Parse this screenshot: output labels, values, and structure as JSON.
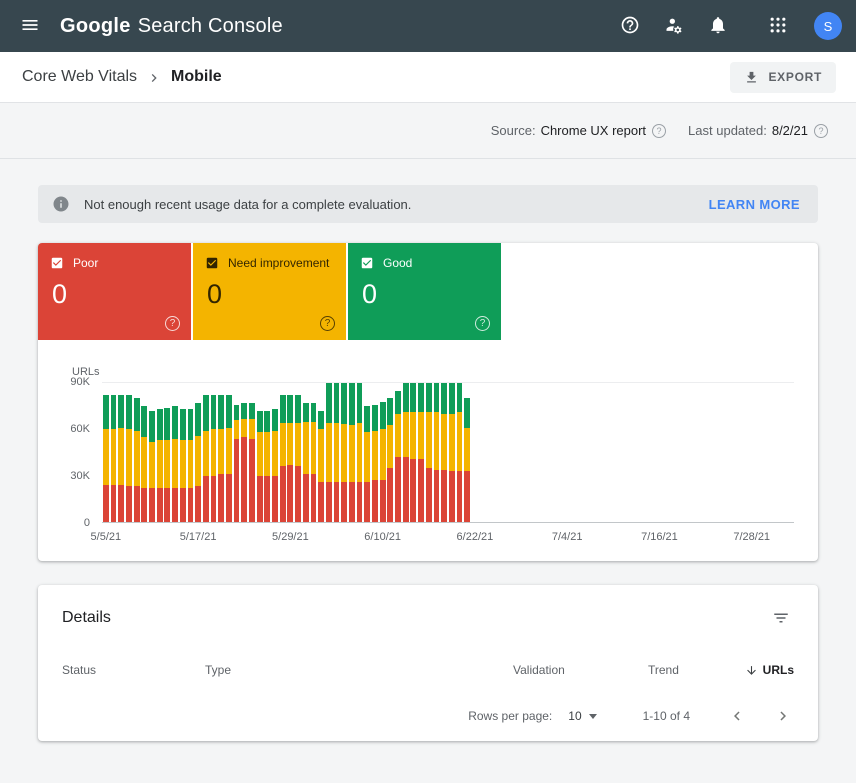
{
  "topbar": {
    "logo_google": "Google",
    "logo_product": "Search Console",
    "avatar_initial": "S",
    "colors": {
      "bar_bg": "#37474F",
      "avatar_bg": "#4285F4"
    }
  },
  "breadcrumb": {
    "parent": "Core Web Vitals",
    "current": "Mobile",
    "export_label": "EXPORT"
  },
  "meta_bar": {
    "source_label": "Source:",
    "source_value": "Chrome UX report",
    "updated_label": "Last updated:",
    "updated_value": "8/2/21"
  },
  "banner": {
    "message": "Not enough recent usage data for a complete evaluation.",
    "action_label": "LEARN MORE",
    "action_color": "#4285F4"
  },
  "status_cards": [
    {
      "label": "Poor",
      "value": "0",
      "color": "#DB4437"
    },
    {
      "label": "Need improvement",
      "value": "0",
      "color": "#F4B400"
    },
    {
      "label": "Good",
      "value": "0",
      "color": "#0F9D58"
    }
  ],
  "icons": {
    "menu": "hamburger",
    "help": "question-mark-circle",
    "user_settings": "person-gear",
    "notifications": "bell",
    "apps": "grid-3x3",
    "export": "download-arrow",
    "info": "info-circle-filled",
    "filter": "filter-lines",
    "sort": "arrow-down",
    "prev": "chevron-left",
    "next": "chevron-right"
  },
  "chart_data": {
    "type": "stacked-bar",
    "ylabel": "URLs",
    "ymax": 90000,
    "yticks": [
      "90K",
      "60K",
      "30K",
      "0"
    ],
    "total_days": 90,
    "x_ticks": [
      {
        "day": 0,
        "label": "5/5/21"
      },
      {
        "day": 12,
        "label": "5/17/21"
      },
      {
        "day": 24,
        "label": "5/29/21"
      },
      {
        "day": 36,
        "label": "6/10/21"
      },
      {
        "day": 48,
        "label": "6/22/21"
      },
      {
        "day": 60,
        "label": "7/4/21"
      },
      {
        "day": 72,
        "label": "7/16/21"
      },
      {
        "day": 84,
        "label": "7/28/21"
      }
    ],
    "series_order": [
      "poor",
      "need_improvement",
      "good"
    ],
    "series_colors": {
      "poor": "#DB4437",
      "need_improvement": "#F4B400",
      "good": "#0F9D58"
    },
    "bars": [
      {
        "poor": 24000,
        "need_improvement": 36000,
        "good": 22000
      },
      {
        "poor": 24000,
        "need_improvement": 36000,
        "good": 22000
      },
      {
        "poor": 24000,
        "need_improvement": 37000,
        "good": 21000
      },
      {
        "poor": 23000,
        "need_improvement": 37000,
        "good": 22000
      },
      {
        "poor": 23000,
        "need_improvement": 36000,
        "good": 21000
      },
      {
        "poor": 22000,
        "need_improvement": 33000,
        "good": 20000
      },
      {
        "poor": 22000,
        "need_improvement": 30000,
        "good": 20000
      },
      {
        "poor": 22000,
        "need_improvement": 31000,
        "good": 20000
      },
      {
        "poor": 22000,
        "need_improvement": 31000,
        "good": 21000
      },
      {
        "poor": 22000,
        "need_improvement": 32000,
        "good": 21000
      },
      {
        "poor": 22000,
        "need_improvement": 31000,
        "good": 20000
      },
      {
        "poor": 22000,
        "need_improvement": 31000,
        "good": 20000
      },
      {
        "poor": 23000,
        "need_improvement": 33000,
        "good": 21000
      },
      {
        "poor": 30000,
        "need_improvement": 29000,
        "good": 23000
      },
      {
        "poor": 30000,
        "need_improvement": 30000,
        "good": 22000
      },
      {
        "poor": 31000,
        "need_improvement": 29000,
        "good": 22000
      },
      {
        "poor": 31000,
        "need_improvement": 30000,
        "good": 21000
      },
      {
        "poor": 54000,
        "need_improvement": 12000,
        "good": 10000
      },
      {
        "poor": 55000,
        "need_improvement": 12000,
        "good": 10000
      },
      {
        "poor": 54000,
        "need_improvement": 13000,
        "good": 10000
      },
      {
        "poor": 30000,
        "need_improvement": 28000,
        "good": 14000
      },
      {
        "poor": 30000,
        "need_improvement": 28000,
        "good": 14000
      },
      {
        "poor": 30000,
        "need_improvement": 29000,
        "good": 14000
      },
      {
        "poor": 36000,
        "need_improvement": 28000,
        "good": 18000
      },
      {
        "poor": 37000,
        "need_improvement": 27000,
        "good": 18000
      },
      {
        "poor": 36000,
        "need_improvement": 28000,
        "good": 18000
      },
      {
        "poor": 31000,
        "need_improvement": 34000,
        "good": 12000
      },
      {
        "poor": 31000,
        "need_improvement": 34000,
        "good": 12000
      },
      {
        "poor": 26000,
        "need_improvement": 34000,
        "good": 12000
      },
      {
        "poor": 26000,
        "need_improvement": 38000,
        "good": 26000
      },
      {
        "poor": 26000,
        "need_improvement": 38000,
        "good": 26000
      },
      {
        "poor": 26000,
        "need_improvement": 38000,
        "good": 27000
      },
      {
        "poor": 26000,
        "need_improvement": 37000,
        "good": 27000
      },
      {
        "poor": 26000,
        "need_improvement": 38000,
        "good": 26000
      },
      {
        "poor": 26000,
        "need_improvement": 32000,
        "good": 17000
      },
      {
        "poor": 27000,
        "need_improvement": 32000,
        "good": 17000
      },
      {
        "poor": 27000,
        "need_improvement": 33000,
        "good": 18000
      },
      {
        "poor": 35000,
        "need_improvement": 28000,
        "good": 17000
      },
      {
        "poor": 42000,
        "need_improvement": 28000,
        "good": 15000
      },
      {
        "poor": 42000,
        "need_improvement": 29000,
        "good": 19000
      },
      {
        "poor": 41000,
        "need_improvement": 30000,
        "good": 19000
      },
      {
        "poor": 41000,
        "need_improvement": 30000,
        "good": 19000
      },
      {
        "poor": 35000,
        "need_improvement": 36000,
        "good": 19000
      },
      {
        "poor": 34000,
        "need_improvement": 37000,
        "good": 19000
      },
      {
        "poor": 34000,
        "need_improvement": 37000,
        "good": 20000
      },
      {
        "poor": 33000,
        "need_improvement": 37000,
        "good": 20000
      },
      {
        "poor": 33000,
        "need_improvement": 38000,
        "good": 19000
      },
      {
        "poor": 33000,
        "need_improvement": 28000,
        "good": 19000
      }
    ]
  },
  "details": {
    "title": "Details",
    "columns": [
      "Status",
      "Type",
      "Validation",
      "Trend",
      "URLs"
    ],
    "pagination": {
      "rows_per_page_label": "Rows per page:",
      "rows_per_page_value": "10",
      "range_label": "1-10 of 4"
    }
  }
}
